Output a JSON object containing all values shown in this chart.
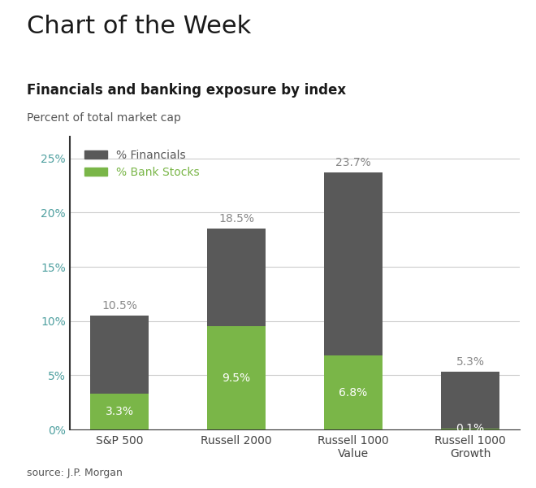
{
  "title_main": "Chart of the Week",
  "title_sub": "Financials and banking exposure by index",
  "title_sub2": "Percent of total market cap",
  "source": "source: J.P. Morgan",
  "categories": [
    "S&P 500",
    "Russell 2000",
    "Russell 1000\nValue",
    "Russell 1000\nGrowth"
  ],
  "financials_total": [
    10.5,
    18.5,
    23.7,
    5.3
  ],
  "bank_stocks": [
    3.3,
    9.5,
    6.8,
    0.1
  ],
  "financials_color": "#595959",
  "bank_color": "#7ab648",
  "legend_financials": "% Financials",
  "legend_bank": "% Bank Stocks",
  "legend_financials_color": "#595959",
  "legend_bank_color": "#7ab648",
  "ylim": [
    0,
    27
  ],
  "yticks": [
    0,
    5,
    10,
    15,
    20,
    25
  ],
  "ytick_labels": [
    "0%",
    "5%",
    "10%",
    "15%",
    "20%",
    "25%"
  ],
  "bar_width": 0.5,
  "bg_color": "#ffffff",
  "title_main_fontsize": 22,
  "title_sub_fontsize": 12,
  "title_sub2_fontsize": 10,
  "source_fontsize": 9,
  "label_fontsize": 10,
  "legend_fontsize": 10,
  "tick_label_fontsize": 10,
  "ytick_color": "#4fa0a0",
  "xtick_color": "#444444",
  "total_label_color": "#888888",
  "bank_label_color": "#ffffff",
  "spine_color": "#333333",
  "grid_color": "#cccccc"
}
